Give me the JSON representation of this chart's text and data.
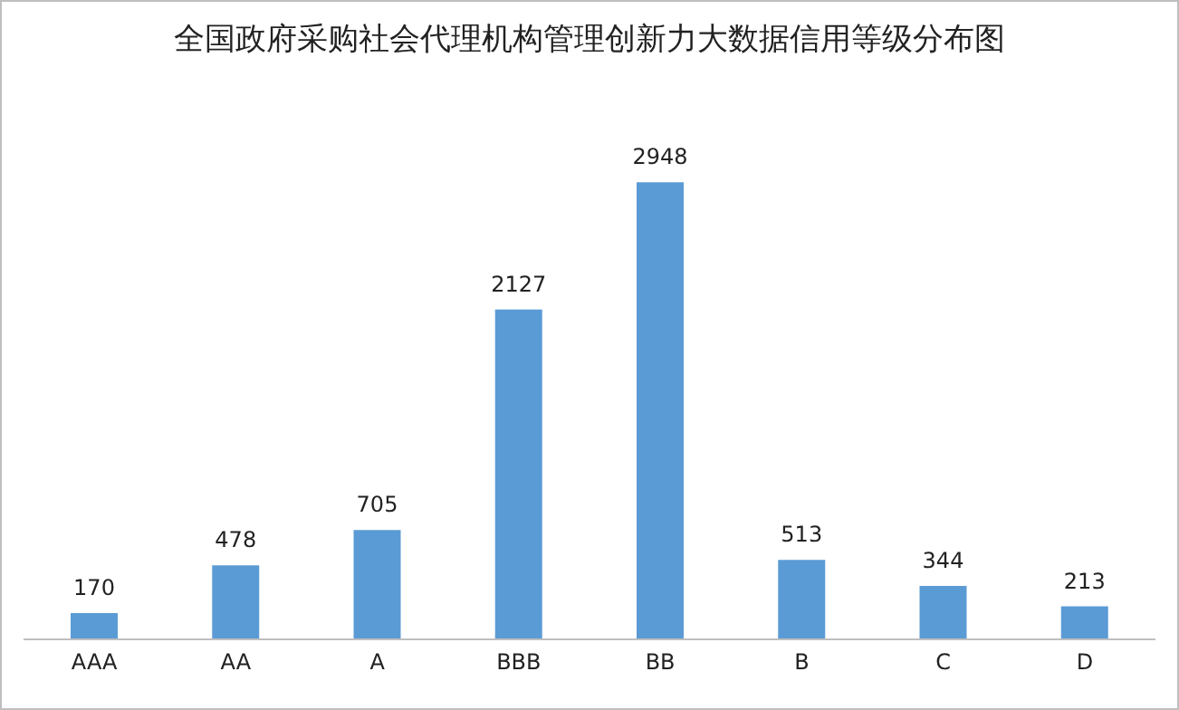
{
  "chart_data": {
    "type": "bar",
    "title": "全国政府采购社会代理机构管理创新力大数据信用等级分布图",
    "categories": [
      "AAA",
      "AA",
      "A",
      "BBB",
      "BB",
      "B",
      "C",
      "D"
    ],
    "values": [
      170,
      478,
      705,
      2127,
      2948,
      513,
      344,
      213
    ],
    "color": "#5b9bd5",
    "data_labels": true,
    "tick_labels": "x"
  }
}
